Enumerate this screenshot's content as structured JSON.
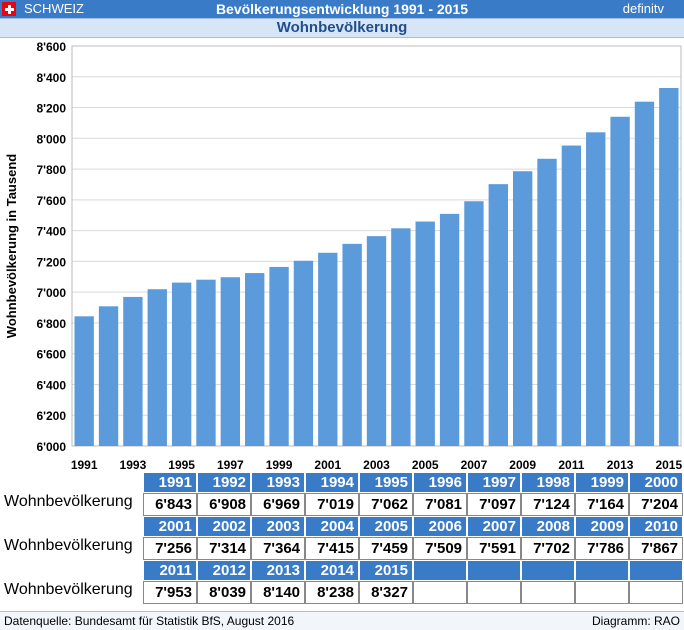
{
  "header": {
    "country": "SCHWEIZ",
    "title": "Bevölkerungsentwicklung 1991 - 2015",
    "status": "definitv",
    "subtitle": "Wohnbevölkerung"
  },
  "chart_data": {
    "type": "bar",
    "ylabel": "Wohnbevölkerung in Tausend",
    "ylim": [
      6000,
      8600
    ],
    "yticks": [
      "6'000",
      "6'200",
      "6'400",
      "6'600",
      "6'800",
      "7'000",
      "7'200",
      "7'400",
      "7'600",
      "7'800",
      "8'000",
      "8'200",
      "8'400",
      "8'600"
    ],
    "categories": [
      "1991",
      "1992",
      "1993",
      "1994",
      "1995",
      "1996",
      "1997",
      "1998",
      "1999",
      "2000",
      "2001",
      "2002",
      "2003",
      "2004",
      "2005",
      "2006",
      "2007",
      "2008",
      "2009",
      "2010",
      "2011",
      "2012",
      "2013",
      "2014",
      "2015"
    ],
    "xticks": [
      "1991",
      "1993",
      "1995",
      "1997",
      "1999",
      "2001",
      "2003",
      "2005",
      "2007",
      "2009",
      "2011",
      "2013",
      "2015"
    ],
    "values": [
      6843,
      6908,
      6969,
      7019,
      7062,
      7081,
      7097,
      7124,
      7164,
      7204,
      7256,
      7314,
      7364,
      7415,
      7459,
      7509,
      7591,
      7702,
      7786,
      7867,
      7953,
      8039,
      8140,
      8238,
      8327
    ],
    "bar_color": "#5b9bdb",
    "grid": true
  },
  "table": {
    "row_label": "Wohnbevölkerung",
    "rows": [
      {
        "years": [
          "1991",
          "1992",
          "1993",
          "1994",
          "1995",
          "1996",
          "1997",
          "1998",
          "1999",
          "2000"
        ],
        "values": [
          "6'843",
          "6'908",
          "6'969",
          "7'019",
          "7'062",
          "7'081",
          "7'097",
          "7'124",
          "7'164",
          "7'204"
        ]
      },
      {
        "years": [
          "2001",
          "2002",
          "2003",
          "2004",
          "2005",
          "2006",
          "2007",
          "2008",
          "2009",
          "2010"
        ],
        "values": [
          "7'256",
          "7'314",
          "7'364",
          "7'415",
          "7'459",
          "7'509",
          "7'591",
          "7'702",
          "7'786",
          "7'867"
        ]
      },
      {
        "years": [
          "2011",
          "2012",
          "2013",
          "2014",
          "2015",
          "",
          "",
          "",
          "",
          ""
        ],
        "values": [
          "7'953",
          "8'039",
          "8'140",
          "8'238",
          "8'327",
          "",
          "",
          "",
          "",
          ""
        ]
      }
    ]
  },
  "footer": {
    "source": "Datenquelle:  Bundesamt für Statistik BfS, August 2016",
    "credit": "Diagramm: RAO"
  }
}
